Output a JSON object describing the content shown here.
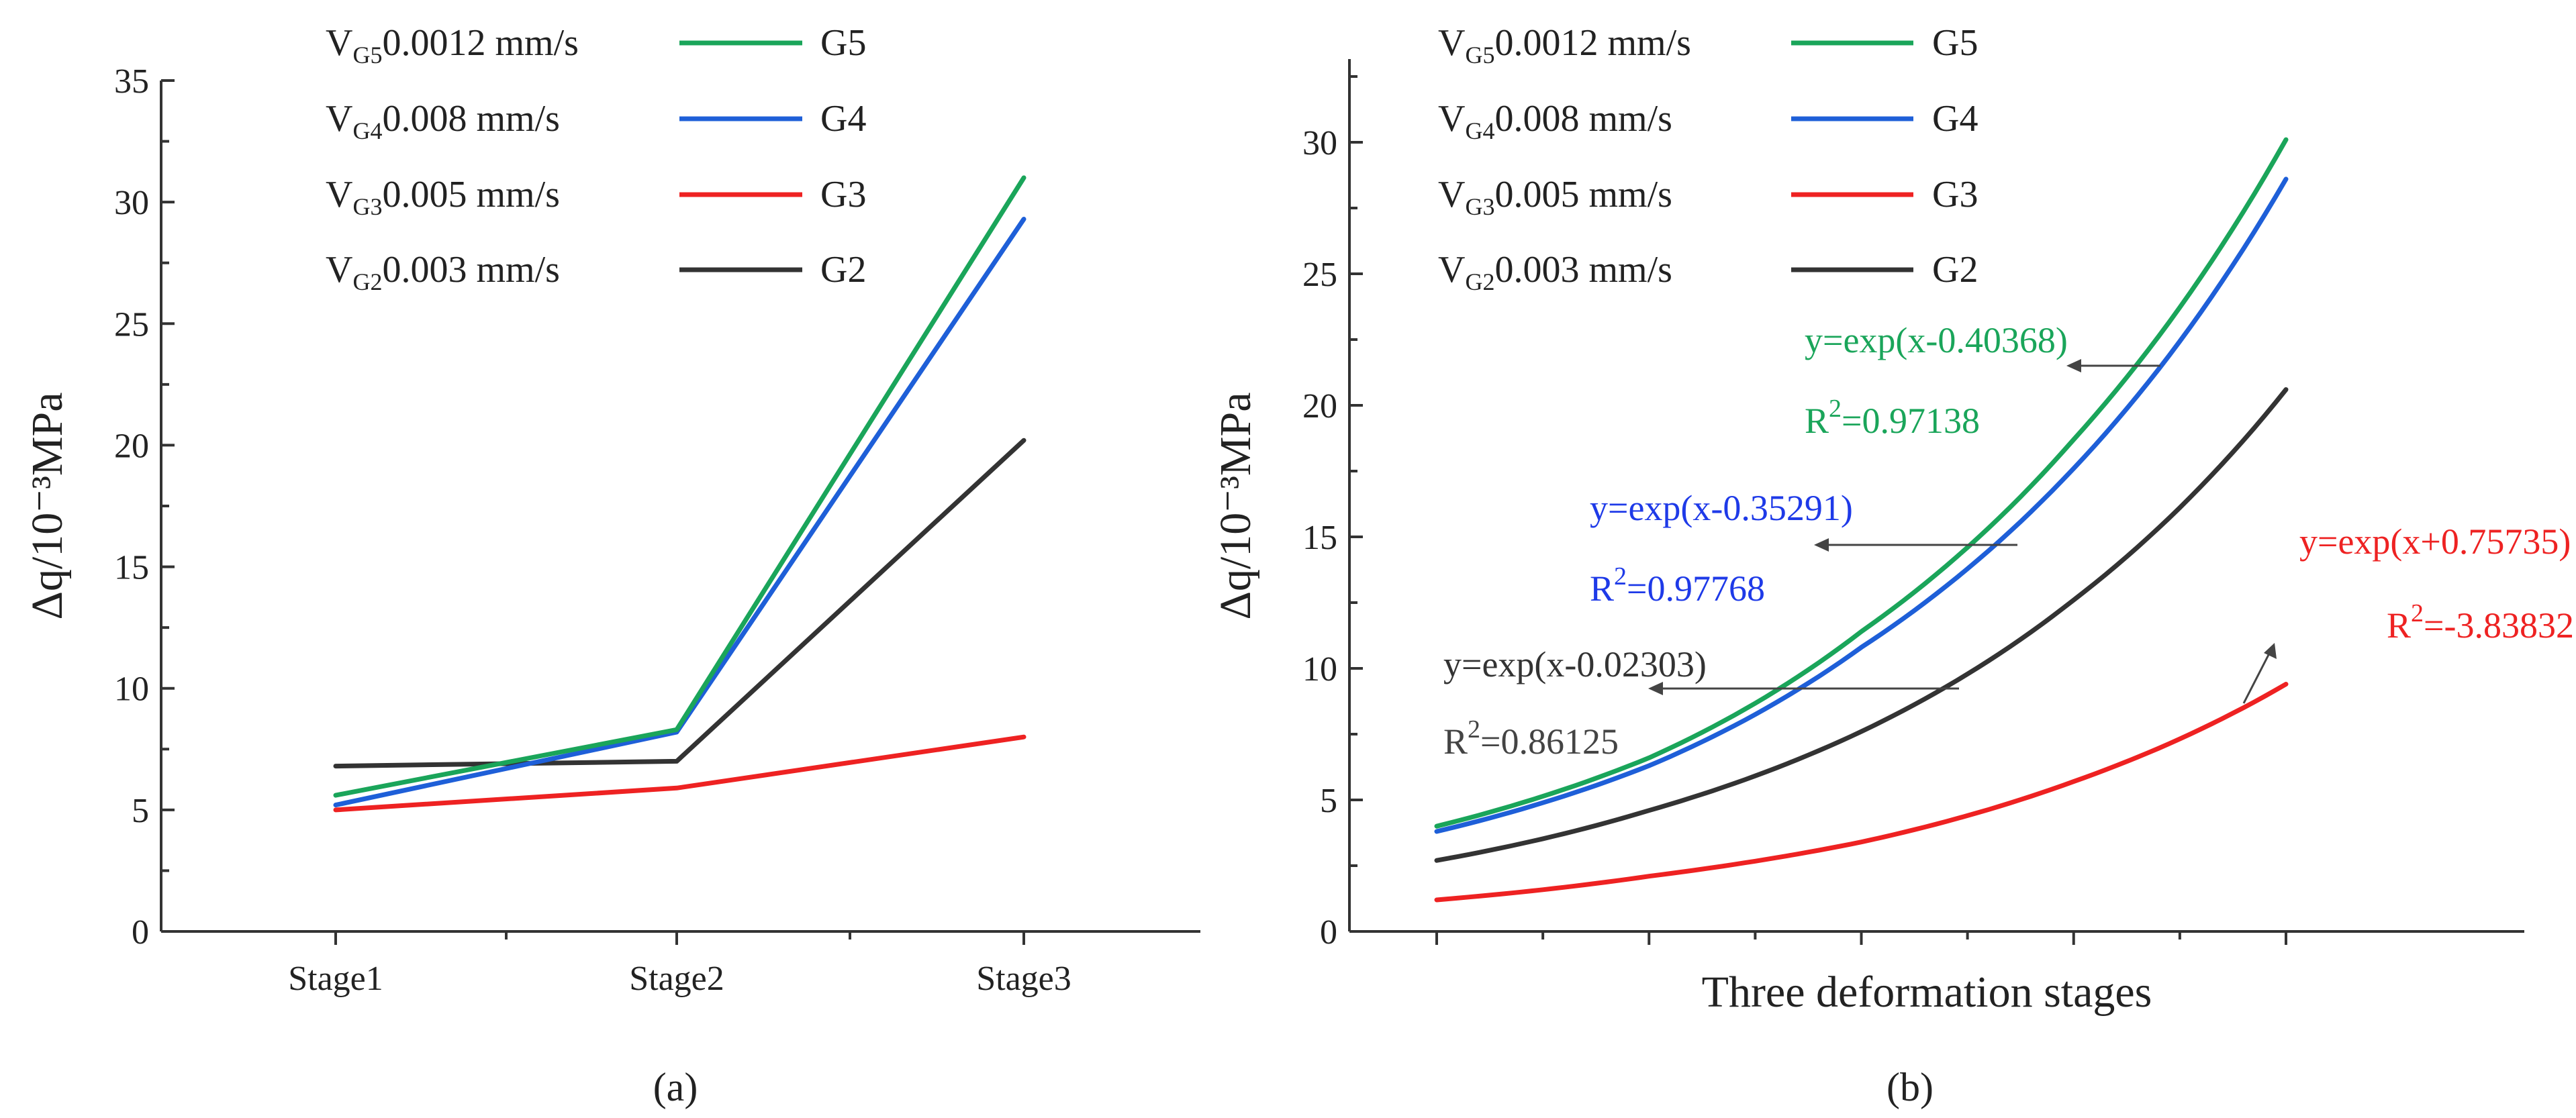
{
  "chart_data": [
    {
      "type": "line",
      "panel": "a",
      "caption": "(a)",
      "categories": [
        "Stage1",
        "Stage2",
        "Stage3"
      ],
      "ylabel": "Δq/10⁻³MPa",
      "xlabel": "",
      "ylim": [
        0,
        35
      ],
      "yticks": [
        0,
        5,
        10,
        15,
        20,
        25,
        30,
        35
      ],
      "legend_position": "top-left",
      "series": [
        {
          "name": "G5",
          "velocity_label": "V",
          "velocity_sub": "G5",
          "velocity_value": "0.0012 mm/s",
          "color": "#1aa55a",
          "values": [
            5.6,
            8.3,
            31.0
          ]
        },
        {
          "name": "G4",
          "velocity_label": "V",
          "velocity_sub": "G4",
          "velocity_value": "0.008 mm/s",
          "color": "#1e5fd8",
          "values": [
            5.2,
            8.2,
            29.3
          ]
        },
        {
          "name": "G3",
          "velocity_label": "V",
          "velocity_sub": "G3",
          "velocity_value": "0.005 mm/s",
          "color": "#ee2222",
          "values": [
            5.0,
            5.9,
            8.0
          ]
        },
        {
          "name": "G2",
          "velocity_label": "V",
          "velocity_sub": "G2",
          "velocity_value": "0.003 mm/s",
          "color": "#333333",
          "values": [
            6.8,
            7.0,
            20.2
          ]
        }
      ]
    },
    {
      "type": "line",
      "panel": "b",
      "caption": "(b)",
      "xlabel": "Three deformation stages",
      "ylabel": "Δq/10⁻³MPa",
      "x_range": [
        0,
        4
      ],
      "ylim": [
        0,
        32.5
      ],
      "yticks": [
        0,
        5,
        10,
        15,
        20,
        25,
        30
      ],
      "legend_position": "top-left",
      "series": [
        {
          "name": "G5",
          "velocity_label": "V",
          "velocity_sub": "G5",
          "velocity_value": "0.0012 mm/s",
          "color": "#1aa55a",
          "x": [
            0,
            1,
            2,
            3,
            4
          ],
          "values": [
            4.0,
            6.6,
            11.4,
            18.7,
            30.1
          ],
          "fit": "y=exp(x-0.40368)",
          "r2_prefix": "R",
          "r2_sup": "2",
          "r2_value": "=0.97138"
        },
        {
          "name": "G4",
          "velocity_label": "V",
          "velocity_sub": "G4",
          "velocity_value": "0.008 mm/s",
          "color": "#1e5fd8",
          "x": [
            0,
            1,
            2,
            3,
            4
          ],
          "values": [
            3.8,
            6.3,
            10.8,
            17.6,
            28.6
          ],
          "fit": "y=exp(x-0.35291)",
          "r2_prefix": "R",
          "r2_sup": "2",
          "r2_value": "=0.97768"
        },
        {
          "name": "G3",
          "velocity_label": "V",
          "velocity_sub": "G3",
          "velocity_value": "0.005 mm/s",
          "color": "#ee2222",
          "x": [
            0,
            1,
            2,
            3,
            4
          ],
          "values": [
            1.2,
            2.1,
            3.4,
            5.7,
            9.4
          ],
          "fit": "y=exp(x+0.75735)",
          "r2_prefix": "R",
          "r2_sup": "2",
          "r2_value": "=-3.83832"
        },
        {
          "name": "G2",
          "velocity_label": "V",
          "velocity_sub": "G2",
          "velocity_value": "0.003 mm/s",
          "color": "#333333",
          "x": [
            0,
            1,
            2,
            3,
            4
          ],
          "values": [
            2.7,
            4.6,
            7.6,
            12.6,
            20.6
          ],
          "fit": "y=exp(x-0.02303)",
          "r2_prefix": "R",
          "r2_sup": "2",
          "r2_value": "=0.86125"
        }
      ]
    }
  ]
}
